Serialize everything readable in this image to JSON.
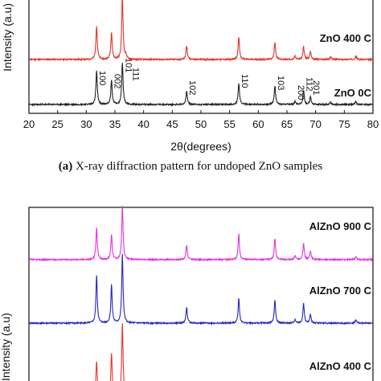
{
  "chart_data": [
    {
      "type": "line",
      "panel": "a",
      "xlabel": "2θ(degrees)",
      "ylabel": "Intensity (a.u)",
      "xlim": [
        20,
        80
      ],
      "xticks": [
        20,
        25,
        30,
        35,
        40,
        45,
        50,
        55,
        60,
        65,
        70,
        75,
        80
      ],
      "grid": false,
      "series": [
        {
          "name": "ZnO 400 C",
          "color": "#e8322a",
          "peaks": [
            {
              "x": 31.8,
              "h": 0.42
            },
            {
              "x": 34.4,
              "h": 0.34
            },
            {
              "x": 36.3,
              "h": 0.8
            },
            {
              "x": 36.9,
              "h": 0.05
            },
            {
              "x": 47.5,
              "h": 0.17
            },
            {
              "x": 56.6,
              "h": 0.28
            },
            {
              "x": 62.9,
              "h": 0.22
            },
            {
              "x": 66.4,
              "h": 0.04
            },
            {
              "x": 67.9,
              "h": 0.16
            },
            {
              "x": 69.1,
              "h": 0.1
            },
            {
              "x": 72.6,
              "h": 0.03
            },
            {
              "x": 77.0,
              "h": 0.04
            }
          ]
        },
        {
          "name": "ZnO 0C",
          "color": "#222222",
          "peaks": [
            {
              "x": 31.8,
              "h": 0.42
            },
            {
              "x": 34.4,
              "h": 0.3
            },
            {
              "x": 36.3,
              "h": 0.52
            },
            {
              "x": 47.5,
              "h": 0.17
            },
            {
              "x": 56.6,
              "h": 0.27
            },
            {
              "x": 62.9,
              "h": 0.23
            },
            {
              "x": 66.4,
              "h": 0.04
            },
            {
              "x": 67.9,
              "h": 0.18
            },
            {
              "x": 69.1,
              "h": 0.09
            },
            {
              "x": 72.6,
              "h": 0.03
            },
            {
              "x": 77.0,
              "h": 0.04
            }
          ]
        }
      ],
      "annotations": [
        {
          "x": 31.8,
          "text": "100"
        },
        {
          "x": 34.4,
          "text": "002"
        },
        {
          "x": 36.3,
          "text": "101"
        },
        {
          "x": 37.6,
          "text": "111"
        },
        {
          "x": 47.5,
          "text": "102"
        },
        {
          "x": 56.6,
          "text": "110"
        },
        {
          "x": 62.9,
          "text": "103"
        },
        {
          "x": 66.4,
          "text": "200"
        },
        {
          "x": 67.9,
          "text": "112"
        },
        {
          "x": 69.1,
          "text": "201"
        }
      ]
    },
    {
      "type": "line",
      "panel": "b",
      "ylabel": "Intensity (a.u)",
      "xlim": [
        20,
        80
      ],
      "grid": false,
      "series": [
        {
          "name": "AlZnO 900 C",
          "color": "#e035e0",
          "peaks": [
            {
              "x": 31.8,
              "h": 0.42
            },
            {
              "x": 34.4,
              "h": 0.33
            },
            {
              "x": 36.3,
              "h": 0.7
            },
            {
              "x": 47.5,
              "h": 0.19
            },
            {
              "x": 56.6,
              "h": 0.34
            },
            {
              "x": 62.9,
              "h": 0.28
            },
            {
              "x": 66.4,
              "h": 0.05
            },
            {
              "x": 67.9,
              "h": 0.22
            },
            {
              "x": 69.1,
              "h": 0.11
            },
            {
              "x": 77.0,
              "h": 0.04
            }
          ]
        },
        {
          "name": "AlZnO 700 C",
          "color": "#2424c8",
          "peaks": [
            {
              "x": 31.8,
              "h": 0.62
            },
            {
              "x": 34.4,
              "h": 0.5
            },
            {
              "x": 36.3,
              "h": 0.9
            },
            {
              "x": 47.5,
              "h": 0.21
            },
            {
              "x": 56.6,
              "h": 0.33
            },
            {
              "x": 62.9,
              "h": 0.3
            },
            {
              "x": 66.4,
              "h": 0.05
            },
            {
              "x": 67.9,
              "h": 0.26
            },
            {
              "x": 69.1,
              "h": 0.11
            },
            {
              "x": 77.0,
              "h": 0.04
            }
          ]
        },
        {
          "name": "AlZnO 400 C",
          "color": "#e8322a",
          "peaks": [
            {
              "x": 31.8,
              "h": 0.45
            },
            {
              "x": 34.4,
              "h": 0.55
            },
            {
              "x": 36.3,
              "h": 0.95
            }
          ]
        }
      ]
    }
  ],
  "caption": {
    "label": "(a)",
    "text": " X-ray diffraction pattern for undoped ZnO samples"
  }
}
